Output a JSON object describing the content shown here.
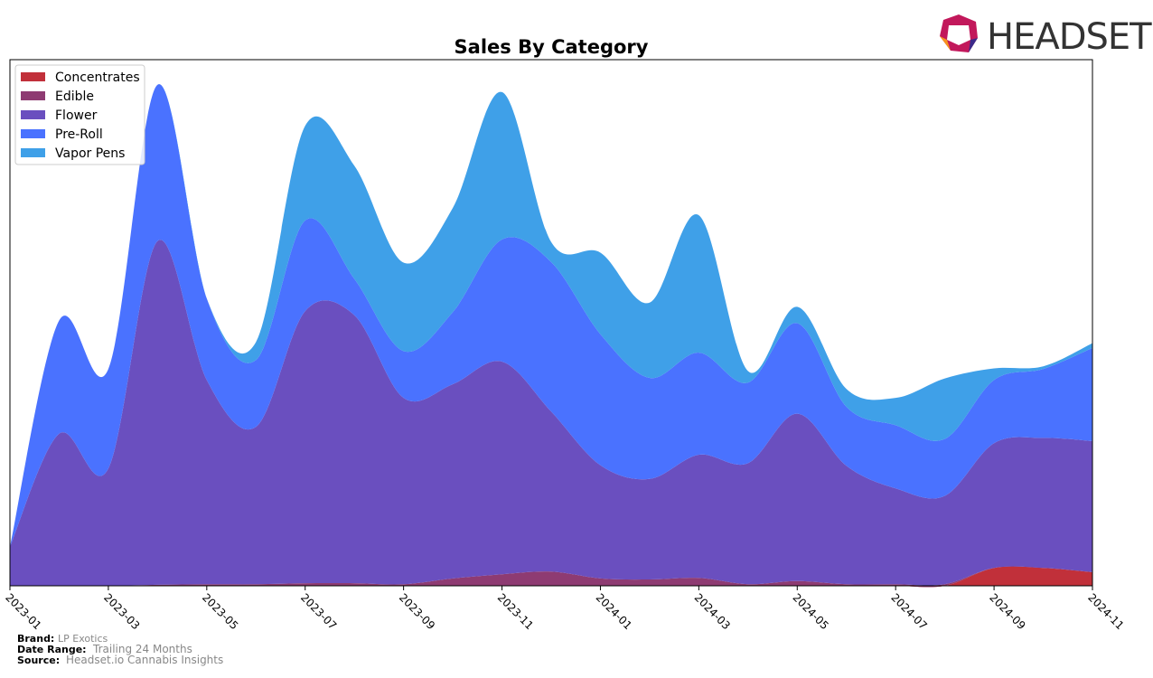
{
  "chart_data": {
    "type": "stacked-area",
    "title": "Sales By Category",
    "x": [
      "2023-01",
      "2023-02",
      "2023-03",
      "2023-04",
      "2023-05",
      "2023-06",
      "2023-07",
      "2023-08",
      "2023-09",
      "2023-10",
      "2023-11",
      "2023-12",
      "2024-01",
      "2024-02",
      "2024-03",
      "2024-04",
      "2024-05",
      "2024-06",
      "2024-07",
      "2024-08",
      "2024-09",
      "2024-10",
      "2024-11"
    ],
    "xticks": [
      "2023-01",
      "2023-03",
      "2023-05",
      "2023-07",
      "2023-09",
      "2023-11",
      "2024-01",
      "2024-03",
      "2024-05",
      "2024-07",
      "2024-09",
      "2024-11"
    ],
    "legend": "upper left",
    "series": [
      {
        "name": "Concentrates",
        "color": "#c1303a",
        "values": [
          0,
          0,
          0,
          0,
          0,
          0,
          0,
          0,
          0,
          0,
          0,
          0,
          0,
          0,
          0,
          0,
          0,
          0,
          0,
          0,
          3.4,
          3.4,
          2.6
        ]
      },
      {
        "name": "Edible",
        "color": "#8e3b72",
        "values": [
          0,
          0,
          0,
          0.2,
          0.3,
          0.3,
          0.5,
          0.5,
          0.3,
          1.4,
          2.2,
          2.7,
          1.4,
          1.2,
          1.5,
          0.3,
          0.9,
          0.3,
          0.3,
          0.3,
          0,
          0,
          0
        ]
      },
      {
        "name": "Flower",
        "color": "#6a4fbf",
        "values": [
          7.4,
          28.9,
          22.3,
          65.3,
          38.8,
          29.9,
          51.7,
          50.9,
          35.4,
          36.9,
          40.4,
          30.4,
          21.5,
          19.1,
          23.4,
          23.0,
          31.8,
          22.5,
          18.2,
          16.8,
          23.7,
          24.7,
          24.9
        ]
      },
      {
        "name": "Pre-Roll",
        "color": "#4a72ff",
        "values": [
          0,
          21.5,
          18.9,
          29.7,
          15.5,
          12.7,
          17.2,
          6.9,
          8.9,
          13.7,
          23.2,
          28.4,
          24.9,
          19.2,
          19.4,
          15.3,
          17.2,
          11.2,
          12.0,
          10.8,
          12.0,
          13.1,
          17.7
        ]
      },
      {
        "name": "Vapor Pens",
        "color": "#3fa0e8",
        "values": [
          0,
          0,
          0,
          0,
          0,
          3.4,
          18.0,
          21.5,
          16.8,
          19.8,
          28.0,
          3.8,
          15.5,
          14.3,
          26.1,
          2.2,
          3.1,
          3.4,
          5.2,
          11.5,
          2.2,
          0.5,
          0.9
        ]
      }
    ]
  },
  "logo": "HEADSET",
  "footer": {
    "brand_label": "Brand:",
    "brand": "LP Exotics",
    "range_label": "Date Range:",
    "range": "Trailing 24 Months",
    "source_label": "Source:",
    "source": "Headset.io Cannabis Insights"
  }
}
